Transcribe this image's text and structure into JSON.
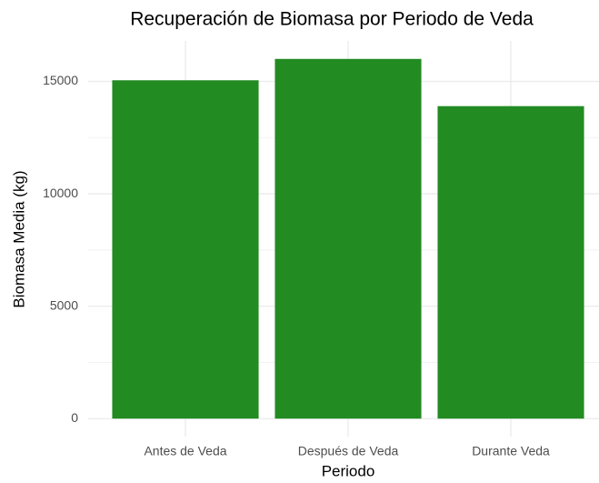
{
  "chart_data": {
    "type": "bar",
    "title": "Recuperación de Biomasa por Periodo de Veda",
    "x_label": "Periodo",
    "y_label": "Biomasa Media (kg)",
    "categories": [
      "Antes de Veda",
      "Después de Veda",
      "Durante Veda"
    ],
    "values": [
      15050,
      16000,
      13900
    ],
    "color": "#228b22",
    "ylim": [
      -800,
      16800
    ],
    "yticks": [
      0,
      5000,
      10000,
      15000
    ],
    "y_minor_ticks": [
      2500,
      7500,
      12500
    ],
    "grid": true
  }
}
